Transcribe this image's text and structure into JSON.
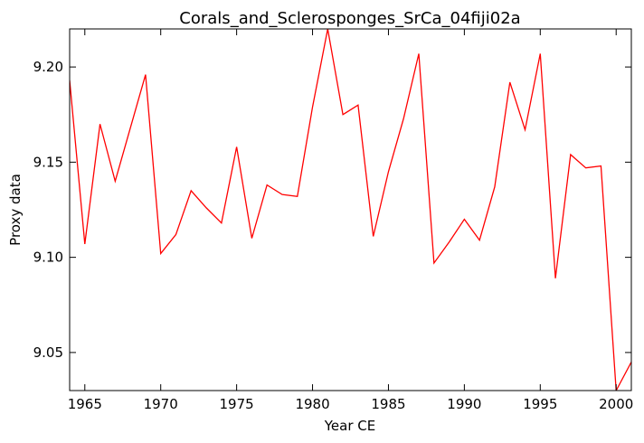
{
  "chart_data": {
    "type": "line",
    "title": "Corals_and_Sclerosponges_SrCa_04fiji02a",
    "xlabel": "Year CE",
    "ylabel": "Proxy data",
    "xlim": [
      1964,
      2001
    ],
    "ylim": [
      9.03,
      9.22
    ],
    "xticks": [
      1965,
      1970,
      1975,
      1980,
      1985,
      1990,
      1995,
      2000
    ],
    "yticks": [
      9.05,
      9.1,
      9.15,
      9.2
    ],
    "ytick_labels": [
      "9.05",
      "9.10",
      "9.15",
      "9.20"
    ],
    "grid": false,
    "line_color": "#ff0000",
    "series": [
      {
        "x": [
          1964,
          1965,
          1966,
          1967,
          1968,
          1969,
          1970,
          1971,
          1972,
          1973,
          1974,
          1975,
          1976,
          1977,
          1978,
          1979,
          1980,
          1981,
          1982,
          1983,
          1984,
          1985,
          1986,
          1987,
          1988,
          1989,
          1990,
          1991,
          1992,
          1993,
          1994,
          1995,
          1996,
          1997,
          1998,
          1999,
          2000,
          2001
        ],
        "values": [
          9.193,
          9.107,
          9.17,
          9.14,
          9.168,
          9.196,
          9.102,
          9.112,
          9.135,
          9.126,
          9.118,
          9.158,
          9.11,
          9.138,
          9.133,
          9.132,
          9.179,
          9.22,
          9.175,
          9.18,
          9.111,
          9.145,
          9.173,
          9.207,
          9.097,
          9.108,
          9.12,
          9.109,
          9.137,
          9.192,
          9.167,
          9.207,
          9.089,
          9.154,
          9.147,
          9.148,
          9.03,
          9.045
        ]
      }
    ]
  }
}
